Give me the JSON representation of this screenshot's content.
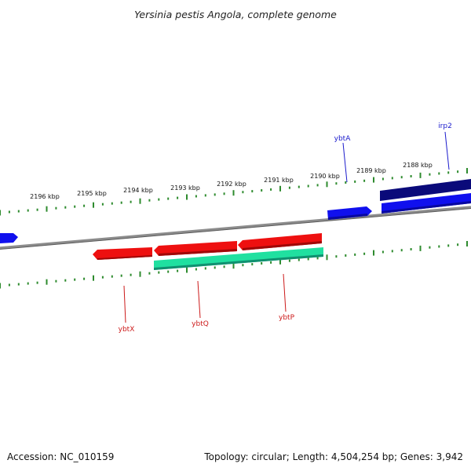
{
  "title": "Yersinia pestis Angola, complete genome",
  "footer": {
    "accession": "Accession: NC_010159",
    "summary": "Topology: circular; Length: 4,504,254 bp; Genes: 3,942"
  },
  "colors": {
    "backbone": "#8c8c8c",
    "tick": "#2e8b2e",
    "gene_forward": "#1010ee",
    "gene_dark": "#0a0a7a",
    "gene_reverse": "#ee1010",
    "gene_green": "#20e0a0",
    "label_blue": "#1a1acc",
    "label_red": "#cc1a1a"
  },
  "scale_labels": [
    "2196 kbp",
    "2195 kbp",
    "2194 kbp",
    "2193 kbp",
    "2192 kbp",
    "2191 kbp",
    "2190 kbp",
    "2189 kbp",
    "2188 kbp"
  ],
  "gene_labels": [
    "ybtA",
    "irp2",
    "ybtX",
    "ybtQ",
    "ybtP"
  ]
}
